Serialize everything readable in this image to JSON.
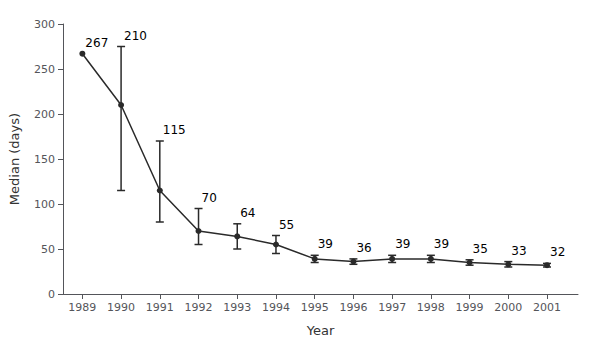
{
  "chart_data": {
    "type": "line",
    "x": [
      1989,
      1990,
      1991,
      1992,
      1993,
      1994,
      1995,
      1996,
      1997,
      1998,
      1999,
      2000,
      2001
    ],
    "values": [
      267,
      210,
      115,
      70,
      64,
      55,
      39,
      36,
      39,
      39,
      35,
      33,
      32
    ],
    "err_lower": [
      0,
      95,
      35,
      15,
      14,
      10,
      4,
      3,
      4,
      4,
      3,
      3,
      2
    ],
    "err_upper": [
      0,
      65,
      55,
      25,
      14,
      10,
      4,
      3,
      4,
      4,
      3,
      3,
      2
    ],
    "color": "#2a2a2a",
    "marker": "circle",
    "xlabel": "Year",
    "ylabel": "Median (days)",
    "xlim": [
      1988.5,
      2001.8
    ],
    "xticks": [
      1989,
      1990,
      1991,
      1992,
      1993,
      1994,
      1995,
      1996,
      1997,
      1998,
      1999,
      2000,
      2001
    ],
    "ylim": [
      0,
      300
    ],
    "yticks": [
      0,
      50,
      100,
      150,
      200,
      250,
      300
    ],
    "grid": false,
    "data_labels": true
  }
}
